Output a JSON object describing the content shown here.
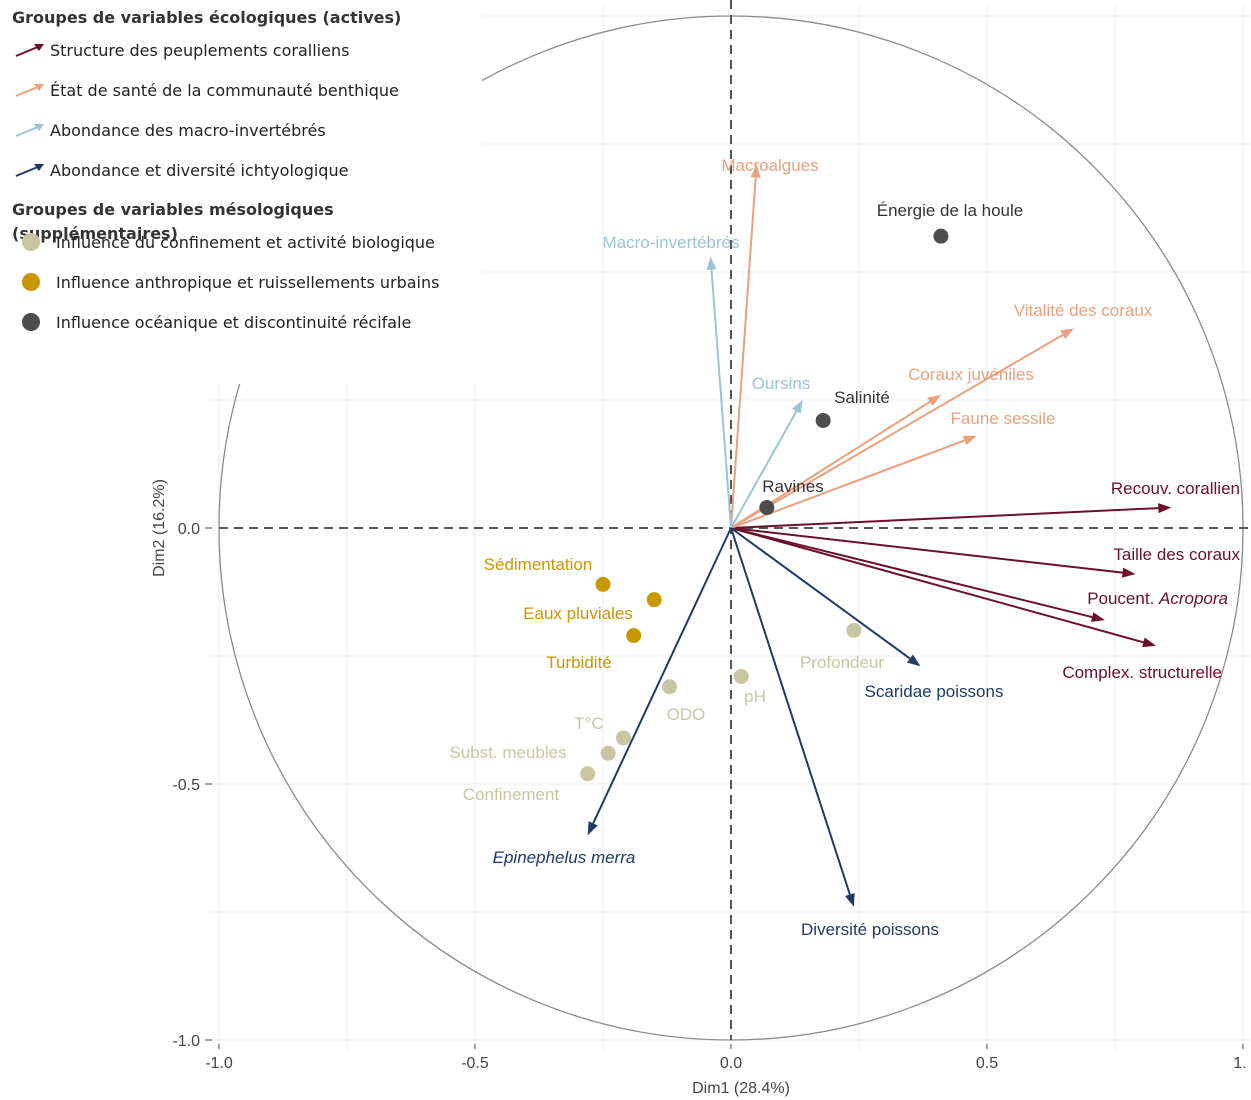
{
  "chart_data": {
    "type": "scatter",
    "subtype": "pca-correlation-circle",
    "title": "",
    "xlabel": "Dim1 (28.4%)",
    "ylabel": "Dim2 (16.2%)",
    "xlim": [
      -1.0,
      1.0
    ],
    "ylim": [
      -1.0,
      1.0
    ],
    "x_ticks": [
      "-1.0",
      "-0.5",
      "0.0",
      "0.5",
      "1."
    ],
    "y_ticks": [
      "-1.0",
      "-0.5",
      "0.0"
    ],
    "grid": true,
    "legend_position": "top-left",
    "legend": {
      "active_title": "Groupes de variables écologiques (actives)",
      "active_groups": [
        {
          "id": "structure",
          "label": "Structure des peuplements coralliens",
          "color": "#6b0f2a"
        },
        {
          "id": "sante",
          "label": "État de santé de la communauté benthique",
          "color": "#e8a07f"
        },
        {
          "id": "macro",
          "label": "Abondance des macro-invertébrés",
          "color": "#9bc3d6"
        },
        {
          "id": "ichtyo",
          "label": "Abondance et diversité ichtyologique",
          "color": "#1f3a63"
        }
      ],
      "supp_title": "Groupes de variables mésologiques (supplémentaires)",
      "supp_groups": [
        {
          "id": "confinement",
          "label": "Influence du confinement et activité biologique",
          "color": "#c8c6a2"
        },
        {
          "id": "anthropique",
          "label": "Influence anthropique et ruissellements urbains",
          "color": "#c99700"
        },
        {
          "id": "oceanique",
          "label": "Influence océanique et discontinuité récifale",
          "color": "#4d4d4d"
        }
      ]
    },
    "arrows": [
      {
        "label": "Recouv. corallien",
        "group": "structure",
        "x": 0.86,
        "y": 0.04
      },
      {
        "label": "Taille des coraux",
        "group": "structure",
        "x": 0.79,
        "y": -0.09
      },
      {
        "label": "Poucent. ",
        "label_italic": "Acropora",
        "group": "structure",
        "x": 0.73,
        "y": -0.18
      },
      {
        "label": "Complex. structurelle",
        "group": "structure",
        "x": 0.83,
        "y": -0.23
      },
      {
        "label": "Macroalgues",
        "group": "sante",
        "x": 0.05,
        "y": 0.71
      },
      {
        "label": "Vitalité des coraux",
        "group": "sante",
        "x": 0.67,
        "y": 0.39
      },
      {
        "label": "Coraux juvéniles",
        "group": "sante",
        "x": 0.41,
        "y": 0.26
      },
      {
        "label": "Faune sessile",
        "group": "sante",
        "x": 0.48,
        "y": 0.18
      },
      {
        "label": "Macro-invertébrés",
        "group": "macro",
        "x": -0.04,
        "y": 0.53
      },
      {
        "label": "Oursins",
        "group": "macro",
        "x": 0.14,
        "y": 0.25
      },
      {
        "label": "Scaridae poissons",
        "group": "ichtyo",
        "x": 0.37,
        "y": -0.27
      },
      {
        "label": "Epinephelus merra",
        "group": "ichtyo",
        "x": -0.28,
        "y": -0.6,
        "italic": true
      },
      {
        "label": "Diversité poissons",
        "group": "ichtyo",
        "x": 0.24,
        "y": -0.74
      }
    ],
    "points": [
      {
        "label": "Énergie de la houle",
        "group": "oceanique",
        "x": 0.41,
        "y": 0.57
      },
      {
        "label": "Salinité",
        "group": "oceanique",
        "x": 0.18,
        "y": 0.21
      },
      {
        "label": "Ravines",
        "group": "oceanique",
        "x": 0.07,
        "y": 0.04
      },
      {
        "label": "Sédimentation",
        "group": "anthropique",
        "x": -0.25,
        "y": -0.11
      },
      {
        "label": "Eaux pluviales",
        "group": "anthropique",
        "x": -0.15,
        "y": -0.14
      },
      {
        "label": "Turbidité",
        "group": "anthropique",
        "x": -0.19,
        "y": -0.21
      },
      {
        "label": "Profondeur",
        "group": "confinement",
        "x": 0.24,
        "y": -0.2
      },
      {
        "label": "pH",
        "group": "confinement",
        "x": 0.02,
        "y": -0.29
      },
      {
        "label": "ODO",
        "group": "confinement",
        "x": -0.12,
        "y": -0.31
      },
      {
        "label": "T°C",
        "group": "confinement",
        "x": -0.21,
        "y": -0.41
      },
      {
        "label": "Subst. meubles",
        "group": "confinement",
        "x": -0.24,
        "y": -0.44
      },
      {
        "label": "Confinement",
        "group": "confinement",
        "x": -0.28,
        "y": -0.48
      }
    ]
  }
}
